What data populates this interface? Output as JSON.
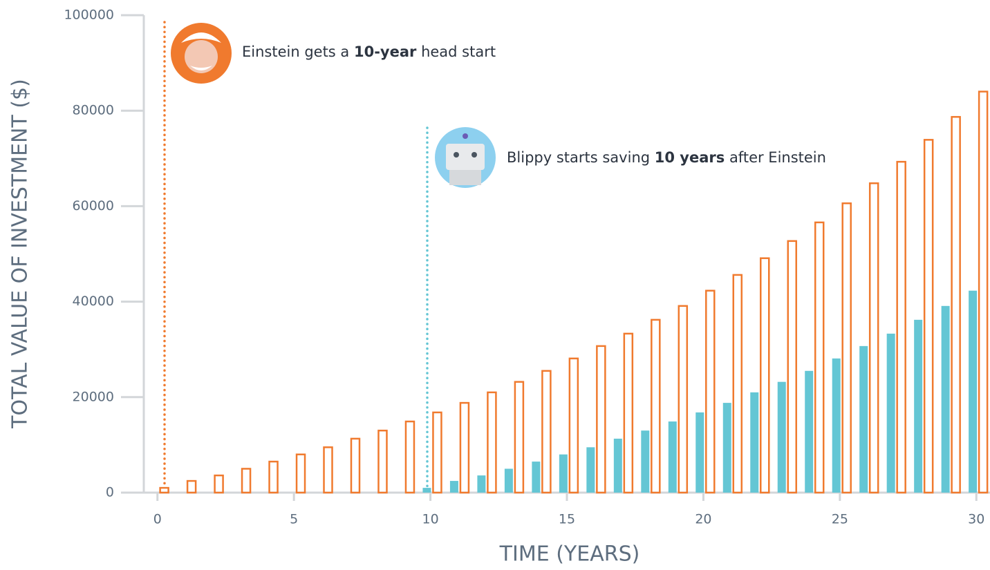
{
  "chart_data": {
    "type": "bar",
    "x_label": "TIME (YEARS)",
    "y_label": "TOTAL VALUE OF INVESTMENT ($)",
    "x": [
      0,
      1,
      2,
      3,
      4,
      5,
      6,
      7,
      8,
      9,
      10,
      11,
      12,
      13,
      14,
      15,
      16,
      17,
      18,
      19,
      20,
      21,
      22,
      23,
      24,
      25,
      26,
      27,
      28,
      29,
      30
    ],
    "series": [
      {
        "name": "Einstein",
        "color": "#f07a2e",
        "fill": "none",
        "values": [
          1000,
          2450,
          3600,
          5000,
          6500,
          8000,
          9500,
          11300,
          13000,
          14900,
          16800,
          18800,
          21000,
          23200,
          25500,
          28100,
          30700,
          33300,
          36200,
          39100,
          42300,
          45600,
          49100,
          52700,
          56600,
          60600,
          64800,
          69300,
          73900,
          78700,
          84000
        ]
      },
      {
        "name": "Blippy",
        "color": "#64c6d4",
        "fill": "solid",
        "values": [
          null,
          null,
          null,
          null,
          null,
          null,
          null,
          null,
          null,
          null,
          1000,
          2450,
          3600,
          5000,
          6500,
          8000,
          9500,
          11300,
          13000,
          14900,
          16800,
          18800,
          21000,
          23200,
          25500,
          28100,
          30700,
          33300,
          36200,
          39100,
          42300
        ]
      }
    ],
    "xlim": [
      -0.5,
      30.5
    ],
    "xticks": [
      0,
      5,
      10,
      15,
      20,
      25,
      30
    ],
    "ylim": [
      0,
      100000
    ],
    "yticks": [
      0,
      20000,
      40000,
      60000,
      80000,
      100000
    ],
    "annotations": [
      {
        "parts": [
          "Einstein gets a ",
          "10-year",
          " head start"
        ]
      },
      {
        "parts": [
          "Blippy starts saving ",
          "10 years",
          " after Einstein"
        ]
      }
    ]
  }
}
